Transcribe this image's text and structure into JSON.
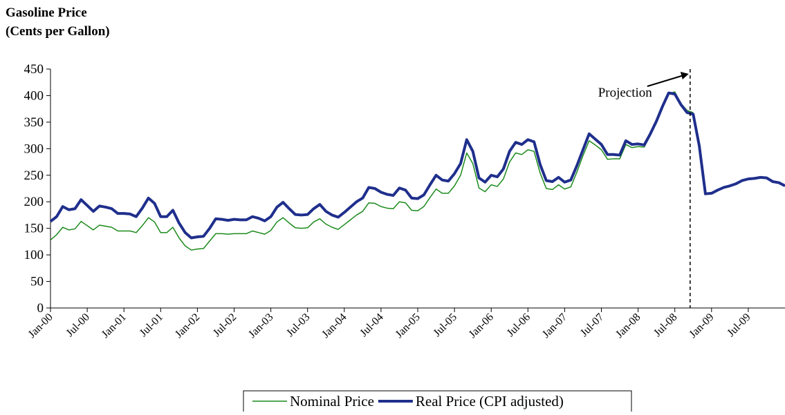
{
  "chart_data": {
    "type": "line",
    "title": "Gasoline Price",
    "subtitle": "(Cents per Gallon)",
    "categories": [
      "Jan-00",
      null,
      null,
      null,
      null,
      null,
      "Jul-00",
      null,
      null,
      null,
      null,
      null,
      "Jan-01",
      null,
      null,
      null,
      null,
      null,
      "Jul-01",
      null,
      null,
      null,
      null,
      null,
      "Jan-02",
      null,
      null,
      null,
      null,
      null,
      "Jul-02",
      null,
      null,
      null,
      null,
      null,
      "Jan-03",
      null,
      null,
      null,
      null,
      null,
      "Jul-03",
      null,
      null,
      null,
      null,
      null,
      "Jan-04",
      null,
      null,
      null,
      null,
      null,
      "Jul-04",
      null,
      null,
      null,
      null,
      null,
      "Jan-05",
      null,
      null,
      null,
      null,
      null,
      "Jul-05",
      null,
      null,
      null,
      null,
      null,
      "Jan-06",
      null,
      null,
      null,
      null,
      null,
      "Jul-06",
      null,
      null,
      null,
      null,
      null,
      "Jan-07",
      null,
      null,
      null,
      null,
      null,
      "Jul-07",
      null,
      null,
      null,
      null,
      null,
      "Jan-08",
      null,
      null,
      null,
      null,
      null,
      "Jul-08",
      null,
      null,
      null,
      null,
      null,
      "Jan-09",
      null,
      null,
      null,
      null,
      null,
      "Jul-09",
      null,
      null,
      null,
      null,
      null,
      null
    ],
    "series": [
      {
        "name": "Nominal Price",
        "color": "#1a8a1a",
        "width": 1.5,
        "values": [
          128,
          138,
          152,
          147,
          149,
          163,
          155,
          147,
          156,
          154,
          152,
          145,
          145,
          145,
          142,
          155,
          170,
          162,
          142,
          142,
          152,
          132,
          117,
          109,
          111,
          112,
          126,
          140,
          140,
          139,
          140,
          140,
          140,
          145,
          142,
          139,
          146,
          162,
          170,
          160,
          151,
          150,
          151,
          162,
          168,
          158,
          152,
          148,
          157,
          166,
          175,
          182,
          198,
          197,
          191,
          188,
          187,
          200,
          198,
          184,
          183,
          191,
          208,
          224,
          216,
          216,
          230,
          250,
          292,
          272,
          226,
          219,
          232,
          229,
          243,
          275,
          292,
          289,
          298,
          295,
          254,
          225,
          223,
          232,
          224,
          228,
          256,
          287,
          315,
          307,
          298,
          280,
          281,
          281,
          308,
          302,
          304,
          303,
          325,
          350,
          378,
          404,
          407,
          385,
          372,
          368,
          null,
          null,
          null,
          null,
          null,
          null,
          null,
          null,
          null,
          null,
          null,
          null,
          null,
          null,
          null
        ]
      },
      {
        "name": "Real Price (CPI adjusted)",
        "color": "#1f2f8c",
        "width": 4,
        "values": [
          163,
          172,
          191,
          185,
          187,
          204,
          193,
          182,
          192,
          190,
          187,
          178,
          178,
          177,
          172,
          188,
          207,
          197,
          172,
          172,
          184,
          160,
          142,
          132,
          134,
          135,
          150,
          168,
          167,
          165,
          167,
          166,
          166,
          172,
          169,
          164,
          172,
          190,
          199,
          187,
          176,
          175,
          176,
          187,
          195,
          182,
          175,
          171,
          180,
          190,
          200,
          207,
          227,
          225,
          218,
          214,
          212,
          226,
          222,
          207,
          206,
          213,
          232,
          250,
          241,
          239,
          253,
          272,
          317,
          295,
          245,
          237,
          250,
          247,
          262,
          295,
          312,
          308,
          317,
          313,
          270,
          240,
          238,
          246,
          237,
          241,
          268,
          298,
          328,
          318,
          308,
          289,
          289,
          288,
          315,
          308,
          309,
          307,
          328,
          352,
          380,
          405,
          403,
          383,
          368,
          365,
          305,
          215,
          216,
          222,
          227,
          230,
          234,
          240,
          243,
          244,
          246,
          245,
          238,
          236,
          230
        ]
      }
    ],
    "annotation": {
      "text": "Projection",
      "x": 104.5
    },
    "ylim": [
      0,
      450
    ],
    "yticks": [
      0,
      50,
      100,
      150,
      200,
      250,
      300,
      350,
      400,
      450
    ],
    "legend": "bottom"
  }
}
